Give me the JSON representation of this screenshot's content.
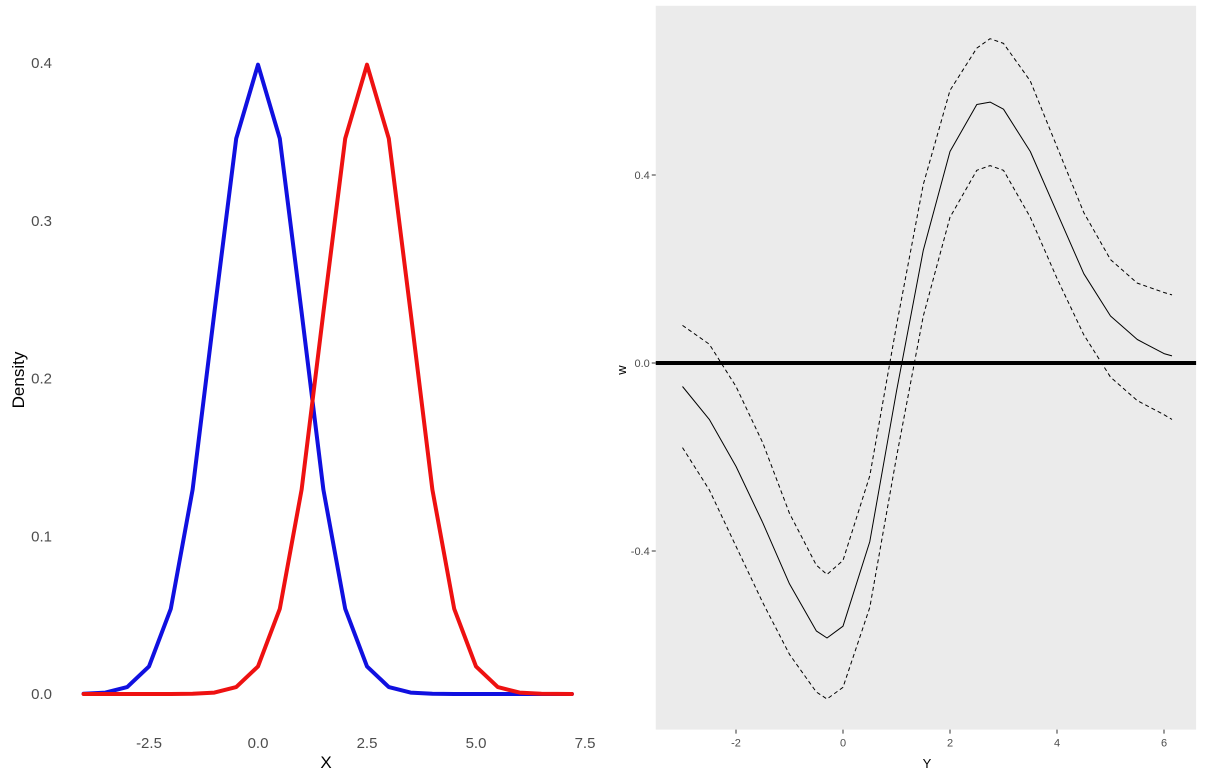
{
  "chart_data": [
    {
      "type": "line",
      "xlabel": "X",
      "ylabel": "Density",
      "xlim": [
        -4,
        7.2
      ],
      "ylim": [
        0,
        0.4
      ],
      "x_ticks": [
        -2.5,
        0.0,
        2.5,
        5.0,
        7.5
      ],
      "x_tick_labels": [
        "-2.5",
        "0.0",
        "2.5",
        "5.0",
        "7.5"
      ],
      "y_ticks": [
        0.0,
        0.1,
        0.2,
        0.3,
        0.4
      ],
      "y_tick_labels": [
        "0.0",
        "0.1",
        "0.2",
        "0.3",
        "0.4"
      ],
      "grid": false,
      "background": "#ffffff",
      "series": [
        {
          "color": "#1010e0",
          "x": [
            -4,
            -3.5,
            -3,
            -2.5,
            -2,
            -1.5,
            -1,
            -0.5,
            0,
            0.5,
            1,
            1.5,
            2,
            2.5,
            3,
            3.5,
            4,
            4.5,
            5,
            5.5,
            6,
            6.5,
            7.2
          ],
          "y": [
            0.0001,
            0.0009,
            0.0044,
            0.0175,
            0.054,
            0.1295,
            0.242,
            0.3521,
            0.3989,
            0.3521,
            0.242,
            0.1295,
            0.054,
            0.0175,
            0.0044,
            0.0009,
            0.0001,
            0,
            0,
            0,
            0,
            0,
            0
          ]
        },
        {
          "color": "#ee1111",
          "x": [
            -4,
            -3.5,
            -3,
            -2.5,
            -2,
            -1.5,
            -1,
            -0.5,
            0,
            0.5,
            1,
            1.5,
            2,
            2.5,
            3,
            3.5,
            4,
            4.5,
            5,
            5.5,
            6,
            6.5,
            7.2
          ],
          "y": [
            0,
            0,
            0,
            0,
            0,
            0.0001,
            0.0009,
            0.0044,
            0.0175,
            0.054,
            0.1295,
            0.242,
            0.3521,
            0.3989,
            0.3521,
            0.242,
            0.1295,
            0.054,
            0.0175,
            0.0044,
            0.0009,
            0.0001,
            0
          ]
        }
      ]
    },
    {
      "type": "line",
      "xlabel": "Y",
      "ylabel": "w",
      "xlim": [
        -3.5,
        6.6
      ],
      "ylim": [
        -0.78,
        0.76
      ],
      "x_ticks": [
        -2,
        0,
        2,
        4,
        6
      ],
      "x_tick_labels": [
        "-2",
        "0",
        "2",
        "4",
        "6"
      ],
      "y_ticks": [
        -0.4,
        0.0,
        0.4
      ],
      "y_tick_labels": [
        "-0.4",
        "0.0",
        "0.4"
      ],
      "grid": false,
      "background": "#ebebeb",
      "hline": {
        "y": 0,
        "color": "#000000"
      },
      "series": [
        {
          "style": "solid",
          "color": "#000000",
          "x": [
            -3.0,
            -2.5,
            -2.0,
            -1.5,
            -1.0,
            -0.5,
            -0.3,
            0.0,
            0.5,
            1.0,
            1.5,
            2.0,
            2.5,
            2.75,
            3.0,
            3.5,
            4.0,
            4.5,
            5.0,
            5.5,
            6.0,
            6.15
          ],
          "y": [
            -0.05,
            -0.12,
            -0.22,
            -0.34,
            -0.47,
            -0.57,
            -0.585,
            -0.56,
            -0.38,
            -0.06,
            0.24,
            0.45,
            0.55,
            0.555,
            0.54,
            0.45,
            0.32,
            0.19,
            0.1,
            0.05,
            0.02,
            0.015
          ]
        },
        {
          "style": "dashed",
          "color": "#000000",
          "x": [
            -3.0,
            -2.5,
            -2.0,
            -1.5,
            -1.0,
            -0.5,
            -0.3,
            0.0,
            0.5,
            1.0,
            1.5,
            2.0,
            2.5,
            2.75,
            3.0,
            3.5,
            4.0,
            4.5,
            5.0,
            5.5,
            6.0,
            6.15
          ],
          "y": [
            0.08,
            0.04,
            -0.05,
            -0.17,
            -0.32,
            -0.43,
            -0.45,
            -0.42,
            -0.24,
            0.08,
            0.38,
            0.58,
            0.67,
            0.69,
            0.68,
            0.6,
            0.46,
            0.32,
            0.22,
            0.17,
            0.15,
            0.145
          ]
        },
        {
          "style": "dashed",
          "color": "#000000",
          "x": [
            -3.0,
            -2.5,
            -2.0,
            -1.5,
            -1.0,
            -0.5,
            -0.3,
            0.0,
            0.5,
            1.0,
            1.5,
            2.0,
            2.5,
            2.75,
            3.0,
            3.5,
            4.0,
            4.5,
            5.0,
            5.5,
            6.0,
            6.15
          ],
          "y": [
            -0.18,
            -0.27,
            -0.39,
            -0.51,
            -0.62,
            -0.7,
            -0.715,
            -0.69,
            -0.52,
            -0.2,
            0.1,
            0.31,
            0.41,
            0.42,
            0.41,
            0.31,
            0.18,
            0.06,
            -0.03,
            -0.08,
            -0.11,
            -0.12
          ]
        }
      ]
    }
  ]
}
